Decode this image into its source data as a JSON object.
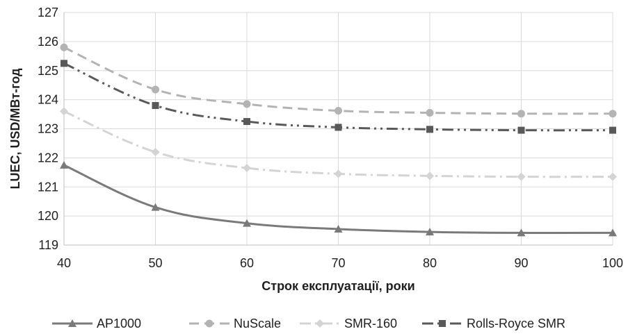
{
  "chart_data": {
    "type": "line",
    "title": "",
    "xlabel": "Строк експлуатації, роки",
    "ylabel": "LUEC, USD/МВт-год",
    "x": [
      40,
      50,
      60,
      70,
      80,
      90,
      100
    ],
    "xlim": [
      40,
      100
    ],
    "ylim": [
      119,
      127
    ],
    "x_ticks": [
      "40",
      "50",
      "60",
      "70",
      "80",
      "90",
      "100"
    ],
    "y_ticks": [
      "119",
      "120",
      "121",
      "122",
      "123",
      "124",
      "125",
      "126",
      "127"
    ],
    "grid": "vertical and horizontal",
    "legend_position": "bottom",
    "series": [
      {
        "name": "AP1000",
        "values": [
          121.75,
          120.3,
          119.75,
          119.55,
          119.45,
          119.42,
          119.42
        ],
        "color": "#7a7a7a",
        "dash": "solid",
        "marker": "triangle"
      },
      {
        "name": "NuScale",
        "values": [
          125.8,
          124.35,
          123.85,
          123.62,
          123.55,
          123.52,
          123.52
        ],
        "color": "#b3b3b3",
        "dash": "dashed",
        "marker": "circle"
      },
      {
        "name": "SMR-160",
        "values": [
          123.6,
          122.2,
          121.65,
          121.45,
          121.38,
          121.35,
          121.35
        ],
        "color": "#d4d4d4",
        "dash": "dash-dot",
        "marker": "diamond"
      },
      {
        "name": "Rolls-Royce SMR",
        "values": [
          125.25,
          123.8,
          123.25,
          123.05,
          122.98,
          122.95,
          122.95
        ],
        "color": "#595959",
        "dash": "dash-dot-dot",
        "marker": "square"
      }
    ]
  }
}
